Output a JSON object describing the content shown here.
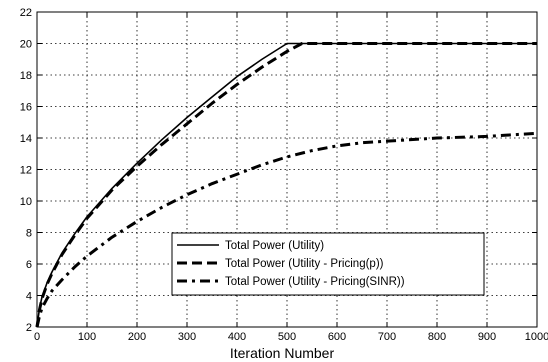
{
  "chart_data": {
    "type": "line",
    "title": "",
    "xlabel": "Iteration Number",
    "ylabel": "",
    "xlim": [
      0,
      1000
    ],
    "ylim": [
      2,
      22
    ],
    "xticks": [
      0,
      100,
      200,
      300,
      400,
      500,
      600,
      700,
      800,
      900,
      1000
    ],
    "yticks": [
      2,
      4,
      6,
      8,
      10,
      12,
      14,
      16,
      18,
      20,
      22
    ],
    "grid": true,
    "grid_style": "dotted",
    "legend_position": "bottom-center",
    "series": [
      {
        "name": "Total Power (Utility)",
        "line_style": "solid",
        "color": "#000000",
        "x": [
          0,
          5,
          10,
          20,
          30,
          50,
          75,
          100,
          150,
          200,
          250,
          300,
          350,
          400,
          450,
          500,
          550,
          600,
          700,
          800,
          900,
          1000
        ],
        "y": [
          2,
          3.2,
          3.9,
          4.8,
          5.5,
          6.7,
          7.9,
          9.0,
          10.8,
          12.4,
          13.9,
          15.3,
          16.6,
          17.9,
          19.0,
          20.0,
          20.0,
          20.0,
          20.0,
          20.0,
          20.0,
          20.0
        ]
      },
      {
        "name": "Total Power (Utility - Pricing(p))",
        "line_style": "dashed",
        "color": "#000000",
        "x": [
          0,
          5,
          10,
          20,
          30,
          50,
          75,
          100,
          150,
          200,
          250,
          300,
          350,
          400,
          450,
          500,
          530,
          550,
          600,
          700,
          800,
          900,
          1000
        ],
        "y": [
          2,
          3.1,
          3.8,
          4.7,
          5.4,
          6.6,
          7.8,
          8.9,
          10.7,
          12.2,
          13.6,
          14.9,
          16.2,
          17.4,
          18.5,
          19.5,
          20.0,
          20.0,
          20.0,
          20.0,
          20.0,
          20.0,
          20.0
        ]
      },
      {
        "name": "Total Power (Utility - Pricing(SINR))",
        "line_style": "dash-dot",
        "color": "#000000",
        "x": [
          0,
          5,
          10,
          20,
          30,
          50,
          75,
          100,
          150,
          200,
          250,
          300,
          350,
          400,
          450,
          500,
          550,
          600,
          650,
          700,
          800,
          900,
          1000
        ],
        "y": [
          2,
          2.7,
          3.2,
          3.8,
          4.3,
          5.0,
          5.8,
          6.5,
          7.7,
          8.7,
          9.6,
          10.4,
          11.1,
          11.7,
          12.3,
          12.8,
          13.2,
          13.5,
          13.7,
          13.8,
          14.0,
          14.1,
          14.3
        ]
      }
    ]
  }
}
